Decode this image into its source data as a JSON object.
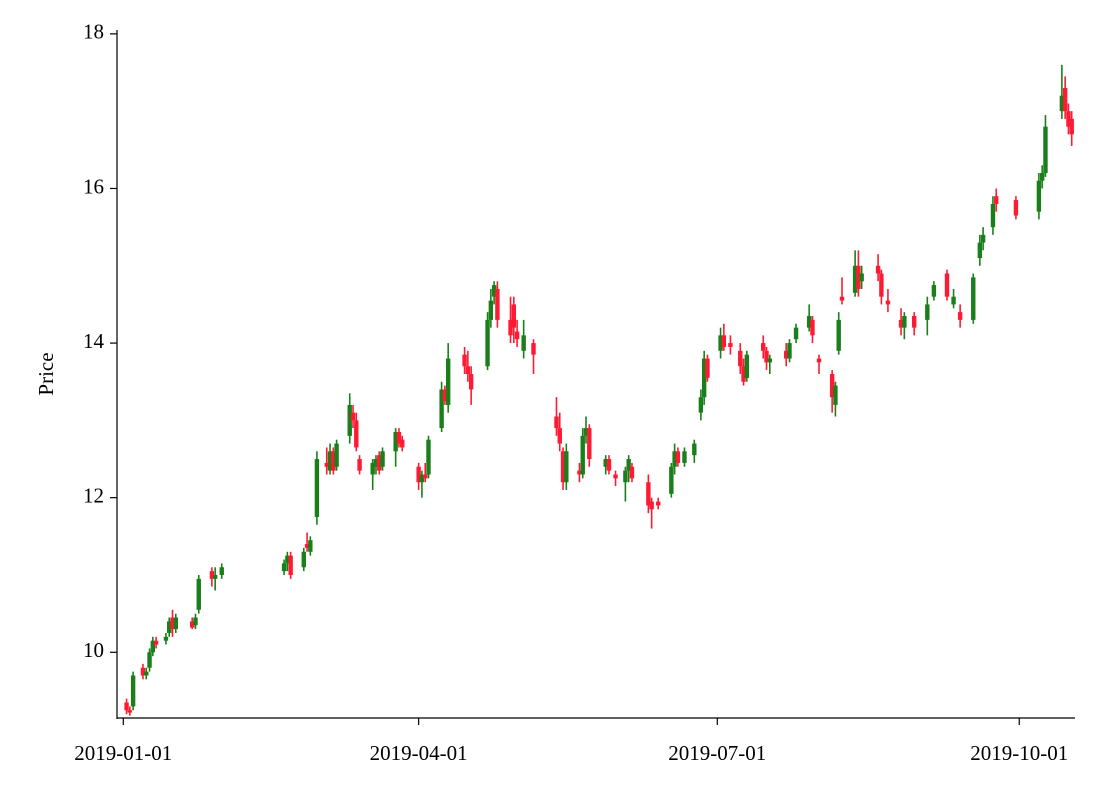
{
  "chart_data": {
    "type": "candlestick",
    "ylabel": "Price",
    "increasing_color": "#1a7f1a",
    "decreasing_color": "#ff1a33",
    "xlim": [
      "2018-12-31",
      "2019-10-18"
    ],
    "xticks": [
      "2019-01-01",
      "2019-04-01",
      "2019-07-01",
      "2019-10-01"
    ],
    "ylim": [
      9.15,
      18.05
    ],
    "yticks": [
      10,
      12,
      14,
      16,
      18
    ],
    "x": [
      "2019-01-02",
      "2019-01-03",
      "2019-01-04",
      "2019-01-07",
      "2019-01-08",
      "2019-01-09",
      "2019-01-10",
      "2019-01-11",
      "2019-01-14",
      "2019-01-15",
      "2019-01-16",
      "2019-01-17",
      "2019-01-22",
      "2019-01-23",
      "2019-01-24",
      "2019-01-28",
      "2019-01-29",
      "2019-01-31",
      "2019-02-19",
      "2019-02-20",
      "2019-02-21",
      "2019-02-25",
      "2019-02-26",
      "2019-02-27",
      "2019-03-01",
      "2019-03-04",
      "2019-03-05",
      "2019-03-06",
      "2019-03-07",
      "2019-03-11",
      "2019-03-12",
      "2019-03-13",
      "2019-03-14",
      "2019-03-18",
      "2019-03-19",
      "2019-03-20",
      "2019-03-21",
      "2019-03-25",
      "2019-03-26",
      "2019-03-27",
      "2019-04-01",
      "2019-04-02",
      "2019-04-03",
      "2019-04-04",
      "2019-04-08",
      "2019-04-09",
      "2019-04-10",
      "2019-04-15",
      "2019-04-16",
      "2019-04-17",
      "2019-04-22",
      "2019-04-23",
      "2019-04-24",
      "2019-04-25",
      "2019-04-29",
      "2019-04-30",
      "2019-05-01",
      "2019-05-03",
      "2019-05-06",
      "2019-05-13",
      "2019-05-14",
      "2019-05-15",
      "2019-05-16",
      "2019-05-20",
      "2019-05-21",
      "2019-05-22",
      "2019-05-23",
      "2019-05-28",
      "2019-05-29",
      "2019-05-31",
      "2019-06-03",
      "2019-06-04",
      "2019-06-05",
      "2019-06-10",
      "2019-06-11",
      "2019-06-13",
      "2019-06-17",
      "2019-06-18",
      "2019-06-19",
      "2019-06-21",
      "2019-06-24",
      "2019-06-26",
      "2019-06-27",
      "2019-06-28",
      "2019-07-02",
      "2019-07-03",
      "2019-07-05",
      "2019-07-08",
      "2019-07-09",
      "2019-07-10",
      "2019-07-15",
      "2019-07-16",
      "2019-07-17",
      "2019-07-22",
      "2019-07-23",
      "2019-07-25",
      "2019-07-29",
      "2019-07-30",
      "2019-08-01",
      "2019-08-05",
      "2019-08-06",
      "2019-08-07",
      "2019-08-08",
      "2019-08-12",
      "2019-08-13",
      "2019-08-14",
      "2019-08-19",
      "2019-08-20",
      "2019-08-22",
      "2019-08-26",
      "2019-08-27",
      "2019-08-30",
      "2019-09-03",
      "2019-09-05",
      "2019-09-09",
      "2019-09-11",
      "2019-09-13",
      "2019-09-17",
      "2019-09-19",
      "2019-09-20",
      "2019-09-23",
      "2019-09-24",
      "2019-09-30",
      "2019-10-07",
      "2019-10-08",
      "2019-10-09",
      "2019-10-14",
      "2019-10-15",
      "2019-10-16",
      "2019-10-17"
    ],
    "open": [
      9.35,
      9.25,
      9.3,
      9.8,
      9.7,
      9.8,
      10.0,
      10.15,
      10.15,
      10.25,
      10.45,
      10.3,
      10.4,
      10.35,
      10.55,
      11.05,
      10.95,
      11.0,
      11.05,
      11.15,
      11.25,
      11.1,
      11.4,
      11.3,
      11.75,
      12.45,
      12.35,
      12.6,
      12.4,
      12.8,
      13.1,
      13.0,
      12.5,
      12.3,
      12.4,
      12.55,
      12.4,
      12.6,
      12.85,
      12.75,
      12.4,
      12.2,
      12.3,
      12.3,
      12.9,
      13.4,
      13.2,
      13.85,
      13.7,
      13.6,
      13.7,
      14.3,
      14.6,
      14.7,
      14.3,
      14.5,
      14.15,
      13.9,
      14.0,
      13.05,
      12.9,
      12.6,
      12.2,
      12.35,
      12.3,
      12.8,
      12.9,
      12.4,
      12.5,
      12.3,
      12.2,
      12.35,
      12.4,
      12.2,
      11.95,
      11.95,
      12.05,
      12.4,
      12.6,
      12.45,
      12.55,
      13.1,
      13.3,
      13.8,
      13.9,
      14.1,
      14.0,
      13.9,
      13.7,
      13.55,
      14.0,
      13.9,
      13.75,
      13.9,
      13.8,
      14.05,
      14.2,
      14.3,
      13.8,
      13.6,
      13.2,
      13.9,
      14.6,
      14.65,
      15.0,
      14.8,
      15.0,
      14.9,
      14.55,
      14.3,
      14.2,
      14.35,
      14.3,
      14.6,
      14.9,
      14.5,
      14.4,
      14.3,
      15.1,
      15.3,
      15.5,
      15.9,
      15.85,
      15.7,
      16.1,
      16.2,
      17.0,
      17.3,
      17.0,
      16.9
    ],
    "high": [
      9.4,
      9.3,
      9.75,
      9.85,
      9.8,
      10.05,
      10.2,
      10.2,
      10.25,
      10.45,
      10.55,
      10.5,
      10.45,
      10.5,
      11.0,
      11.1,
      11.1,
      11.15,
      11.2,
      11.3,
      11.3,
      11.35,
      11.55,
      11.5,
      12.6,
      12.65,
      12.7,
      12.65,
      12.75,
      13.35,
      13.2,
      13.1,
      12.55,
      12.5,
      12.55,
      12.6,
      12.65,
      12.9,
      12.9,
      12.8,
      12.45,
      12.35,
      12.45,
      12.8,
      13.5,
      13.45,
      14.0,
      13.95,
      13.9,
      13.7,
      14.4,
      14.7,
      14.8,
      14.8,
      14.6,
      14.6,
      14.3,
      14.3,
      14.05,
      13.3,
      13.1,
      12.65,
      12.7,
      12.45,
      12.9,
      13.05,
      12.95,
      12.55,
      12.55,
      12.35,
      12.4,
      12.55,
      12.45,
      12.3,
      12.0,
      12.0,
      12.45,
      12.7,
      12.65,
      12.65,
      12.75,
      13.4,
      13.9,
      13.85,
      14.2,
      14.25,
      14.1,
      14.0,
      13.8,
      13.9,
      14.1,
      13.95,
      13.85,
      14.0,
      14.05,
      14.25,
      14.5,
      14.35,
      13.85,
      13.65,
      13.5,
      14.4,
      14.85,
      15.2,
      15.2,
      15.0,
      15.15,
      14.95,
      14.7,
      14.45,
      14.4,
      14.4,
      14.6,
      14.8,
      14.95,
      14.7,
      14.5,
      14.9,
      15.4,
      15.5,
      15.9,
      16.0,
      15.9,
      16.2,
      16.3,
      16.95,
      17.6,
      17.45,
      17.1,
      17.0
    ],
    "low": [
      9.2,
      9.18,
      9.25,
      9.65,
      9.65,
      9.75,
      9.95,
      10.05,
      10.1,
      10.2,
      10.2,
      10.25,
      10.3,
      10.3,
      10.5,
      10.85,
      10.8,
      10.95,
      11.0,
      11.05,
      10.95,
      11.05,
      11.3,
      11.25,
      11.65,
      12.3,
      12.3,
      12.3,
      12.35,
      12.7,
      12.9,
      12.6,
      12.3,
      12.1,
      12.3,
      12.3,
      12.35,
      12.4,
      12.65,
      12.6,
      12.1,
      12.0,
      12.2,
      12.25,
      12.85,
      13.2,
      13.1,
      13.6,
      13.5,
      13.2,
      13.65,
      14.2,
      14.5,
      14.2,
      14.0,
      14.0,
      13.95,
      13.8,
      13.6,
      12.8,
      12.6,
      12.1,
      12.1,
      12.2,
      12.25,
      12.7,
      12.4,
      12.3,
      12.3,
      12.15,
      11.95,
      12.2,
      12.2,
      11.8,
      11.6,
      11.85,
      12.0,
      12.3,
      12.4,
      12.4,
      12.45,
      13.0,
      13.2,
      13.5,
      13.8,
      13.9,
      13.85,
      13.6,
      13.45,
      13.5,
      13.8,
      13.65,
      13.6,
      13.7,
      13.75,
      14.0,
      14.15,
      14.0,
      13.6,
      13.1,
      13.05,
      13.85,
      14.5,
      14.6,
      14.6,
      14.7,
      14.8,
      14.5,
      14.4,
      14.1,
      14.05,
      14.1,
      14.1,
      14.55,
      14.55,
      14.45,
      14.2,
      14.25,
      15.0,
      15.2,
      15.4,
      15.7,
      15.6,
      15.6,
      16.0,
      16.15,
      16.9,
      16.9,
      16.7,
      16.55
    ],
    "close": [
      9.25,
      9.22,
      9.7,
      9.7,
      9.75,
      10.0,
      10.15,
      10.1,
      10.2,
      10.4,
      10.3,
      10.45,
      10.32,
      10.45,
      10.95,
      10.95,
      11.0,
      11.1,
      11.15,
      11.25,
      11.0,
      11.3,
      11.35,
      11.45,
      12.5,
      12.4,
      12.6,
      12.35,
      12.7,
      13.2,
      13.0,
      12.65,
      12.35,
      12.45,
      12.5,
      12.35,
      12.6,
      12.85,
      12.7,
      12.65,
      12.2,
      12.3,
      12.25,
      12.75,
      13.4,
      13.25,
      13.8,
      13.7,
      13.6,
      13.4,
      14.3,
      14.55,
      14.75,
      14.3,
      14.1,
      14.2,
      14.05,
      14.1,
      13.85,
      12.9,
      12.7,
      12.2,
      12.6,
      12.3,
      12.8,
      12.9,
      12.5,
      12.5,
      12.35,
      12.25,
      12.35,
      12.5,
      12.25,
      11.9,
      11.85,
      11.9,
      12.4,
      12.6,
      12.45,
      12.6,
      12.7,
      13.3,
      13.8,
      13.55,
      14.1,
      13.95,
      13.95,
      13.7,
      13.5,
      13.85,
      13.9,
      13.75,
      13.8,
      13.8,
      14.0,
      14.2,
      14.35,
      14.1,
      13.75,
      13.3,
      13.45,
      14.3,
      14.55,
      15.0,
      14.7,
      14.9,
      14.9,
      14.6,
      14.5,
      14.2,
      14.35,
      14.2,
      14.5,
      14.75,
      14.6,
      14.6,
      14.3,
      14.85,
      15.3,
      15.4,
      15.8,
      15.8,
      15.65,
      16.1,
      16.2,
      16.8,
      17.2,
      17.0,
      16.8,
      16.7
    ]
  }
}
